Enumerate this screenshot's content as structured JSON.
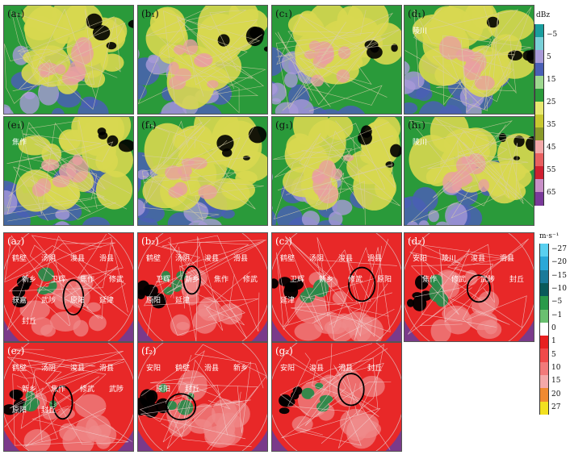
{
  "reflectivity_panels": [
    {
      "label": "(a₁)",
      "cities": []
    },
    {
      "label": "(b₁)",
      "cities": []
    },
    {
      "label": "(c₁)",
      "cities": []
    },
    {
      "label": "(d₁)",
      "cities": [
        "陵川"
      ]
    },
    {
      "label": "(e₁)",
      "cities": [
        "焦作"
      ]
    },
    {
      "label": "(f₁)",
      "cities": []
    },
    {
      "label": "(g₁)",
      "cities": []
    },
    {
      "label": "(h₁)",
      "cities": [
        "陵川"
      ]
    }
  ],
  "velocity_panels": [
    {
      "label": "(a₂)",
      "cities": [
        "鹤壁",
        "汤阴",
        "浚县",
        "滑县",
        "新乡",
        "卫辉",
        "焦作",
        "修武",
        "获嘉",
        "武陟",
        "原阳",
        "延津",
        "封丘"
      ]
    },
    {
      "label": "(b₂)",
      "cities": [
        "鹤壁",
        "汤阴",
        "浚县",
        "滑县",
        "卫辉",
        "新乡",
        "焦作",
        "修武",
        "原阳",
        "延津"
      ]
    },
    {
      "label": "(c₂)",
      "cities": [
        "鹤壁",
        "汤阴",
        "浚县",
        "滑县",
        "卫辉",
        "新乡",
        "修武",
        "原阳",
        "延津"
      ]
    },
    {
      "label": "(d₂)",
      "cities": [
        "安阳",
        "陵川",
        "浚县",
        "滑县",
        "焦作",
        "修武",
        "武陟",
        "封丘"
      ]
    },
    {
      "label": "(e₂)",
      "cities": [
        "鹤壁",
        "汤阴",
        "浚县",
        "滑县",
        "新乡",
        "焦作",
        "修武",
        "武陟",
        "原阳",
        "封丘"
      ]
    },
    {
      "label": "(f₂)",
      "cities": [
        "安阳",
        "鹤壁",
        "滑县",
        "新乡",
        "原阳",
        "封丘"
      ]
    },
    {
      "label": "(g₂)",
      "cities": [
        "安阳",
        "浚县",
        "滑县",
        "封丘"
      ]
    }
  ],
  "reflectivity_colorbar": {
    "unit": "dBz",
    "ticks": [
      "−5",
      "5",
      "15",
      "25",
      "35",
      "45",
      "55",
      "65"
    ],
    "colors": [
      "#1a9e9e",
      "#7ad0d8",
      "#a89ad8",
      "#4a5fb5",
      "#9ed88f",
      "#2a9a3a",
      "#e8e870",
      "#c8c830",
      "#8a9a2a",
      "#f2a8a8",
      "#e86060",
      "#d02030",
      "#c890c8",
      "#7a3a9a"
    ]
  },
  "velocity_colorbar": {
    "unit": "m·s⁻¹",
    "ticks": [
      "−27",
      "−20",
      "−15",
      "−10",
      "−5",
      "−1",
      "0",
      "1",
      "5",
      "10",
      "15",
      "20",
      "27"
    ],
    "colors": [
      "#5ad0f0",
      "#2aa8d8",
      "#1a7a9a",
      "#0a5a5a",
      "#2a9a4a",
      "#6ac070",
      "#ffffff",
      "#e82020",
      "#f04a4a",
      "#f27a7a",
      "#f4a8a8",
      "#f08a30",
      "#f2e020"
    ]
  },
  "colors": {
    "refl_bg": "#2a9a3a",
    "refl_yellow": "#d8d850",
    "refl_pink": "#e8a0a0",
    "refl_blue": "#4a5fb5",
    "refl_purple": "#a89ad8",
    "vel_red": "#e82828",
    "vel_pink": "#f08a8a",
    "vel_purple": "#7a3a8a",
    "vel_green": "#2a8a4a",
    "vel_black": "#000000",
    "circle_black": "#000000",
    "circle_yellow": "#f2e020"
  }
}
